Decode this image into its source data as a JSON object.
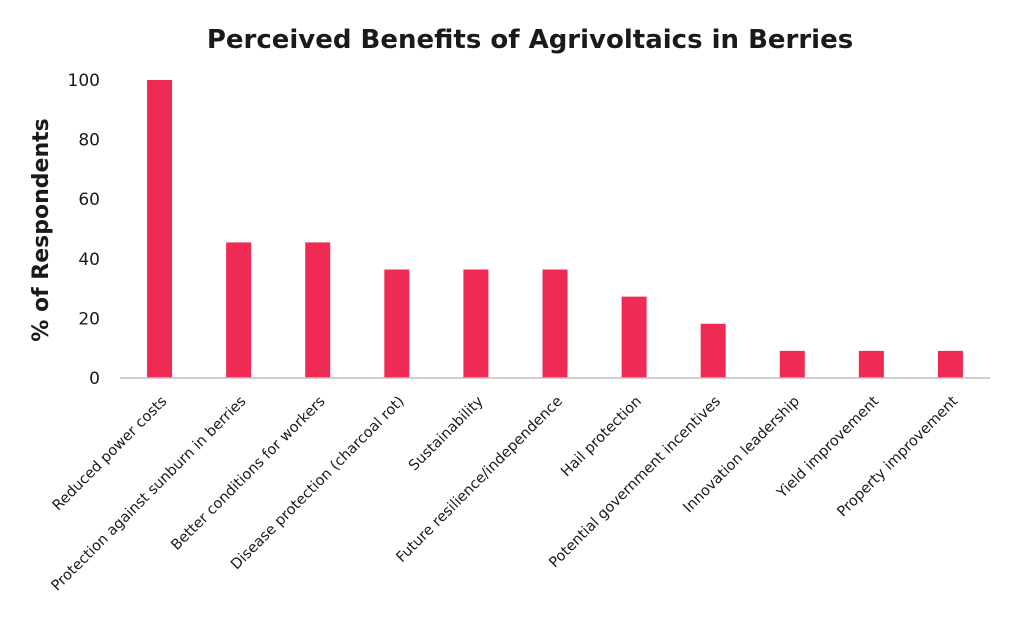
{
  "chart_data": {
    "type": "bar",
    "title": "Perceived Benefits of Agrivoltaics in Berries",
    "xlabel": "",
    "ylabel": "% of Respondents",
    "ylim": [
      0,
      100
    ],
    "yticks": [
      0,
      20,
      40,
      60,
      80,
      100
    ],
    "grid": false,
    "bar_color": "#ee2a55",
    "axis_color": "#bfbfbf",
    "categories": [
      "Reduced power costs",
      "Protection against sunburn in berries",
      "Better conditions for workers",
      "Disease protection (charcoal rot)",
      "Sustainability",
      "Future resilience/independence",
      "Hail protection",
      "Potential government incentives",
      "Innovation leadership",
      "Yield improvement",
      "Property improvement"
    ],
    "values": [
      100,
      45.5,
      45.5,
      36.4,
      36.4,
      36.4,
      27.3,
      18.2,
      9.1,
      9.1,
      9.1
    ]
  }
}
